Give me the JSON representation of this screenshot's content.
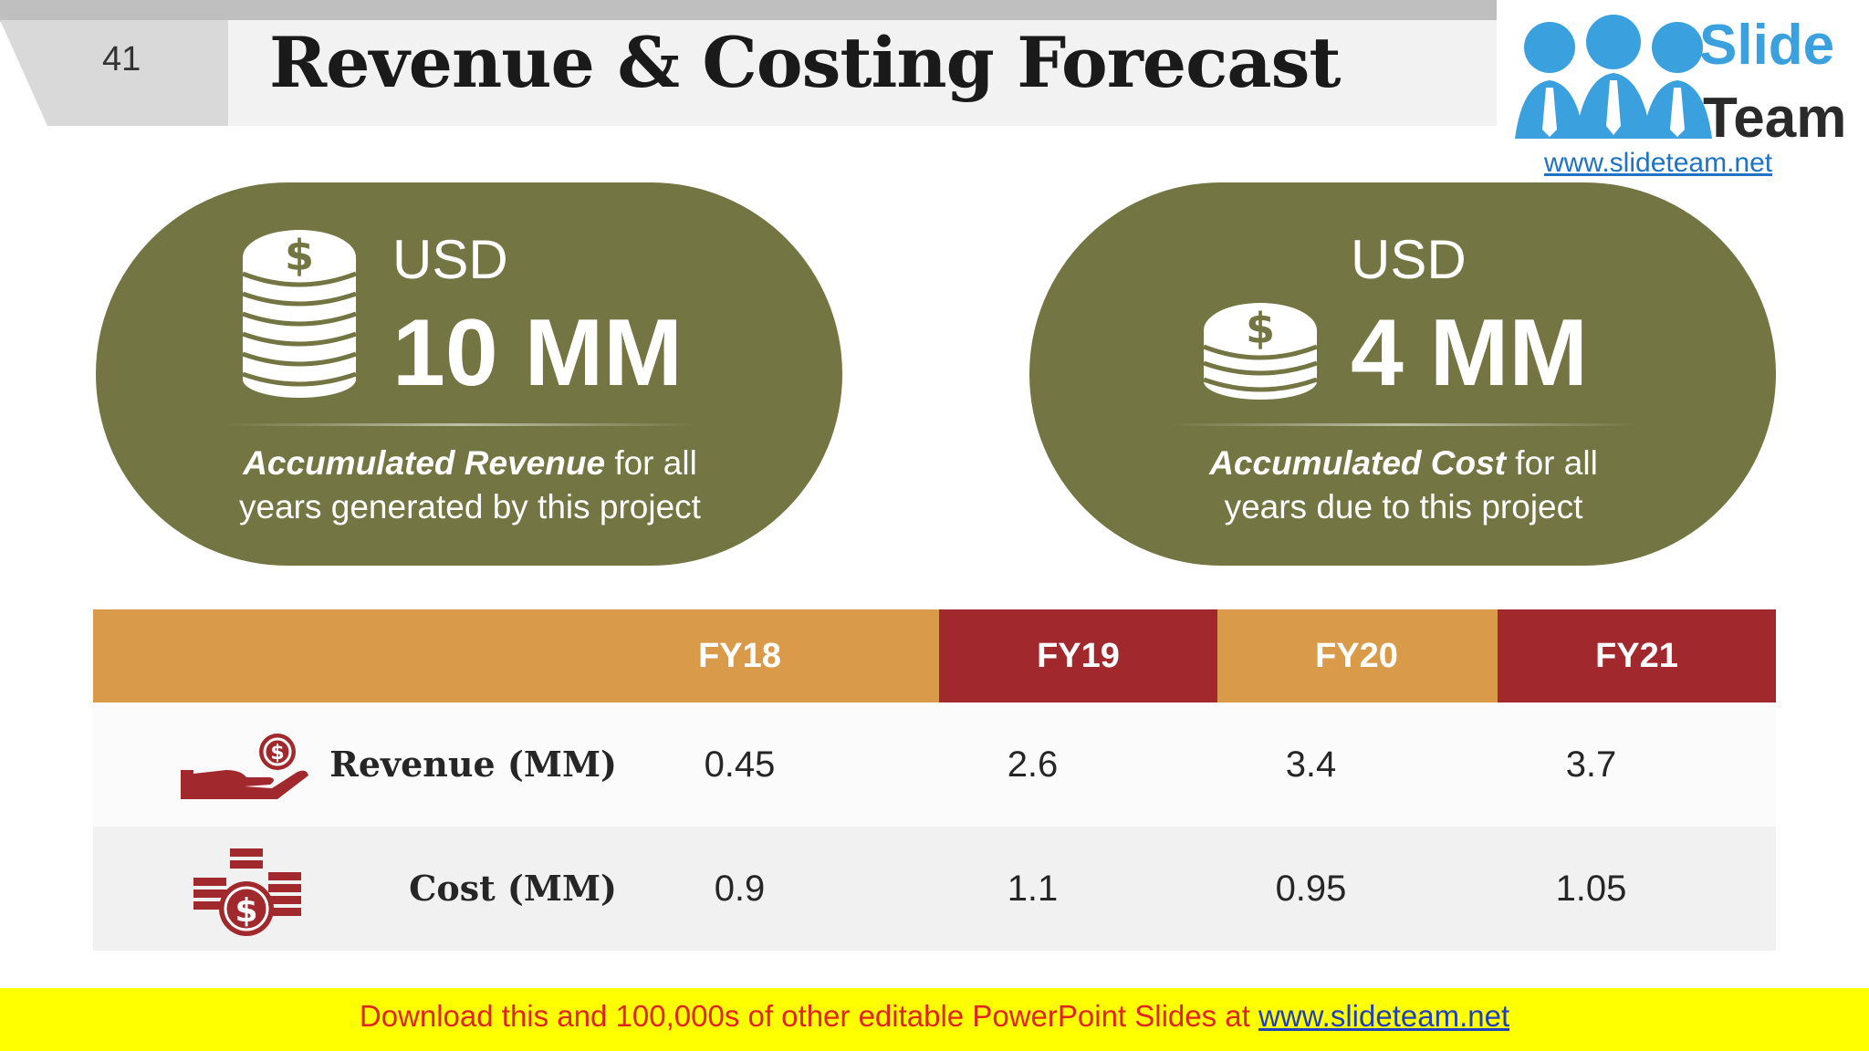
{
  "slide_number": "41",
  "title": "Revenue & Costing Forecast",
  "logo": {
    "line1": "Slide",
    "line2": "Team",
    "url": "www.slideteam.net"
  },
  "revenue_card": {
    "currency": "USD",
    "amount": "10 MM",
    "desc_bold": "Accumulated Revenue",
    "desc_rest_1": " for all",
    "desc_line2": "years generated by this project",
    "icon": "coin-stack-icon"
  },
  "cost_card": {
    "currency": "USD",
    "amount": "4 MM",
    "desc_bold": "Accumulated Cost",
    "desc_rest_1": " for all",
    "desc_line2": "years due to this project",
    "icon": "coin-stack-icon"
  },
  "table": {
    "headers": [
      "FY18",
      "FY19",
      "FY20",
      "FY21"
    ],
    "rows": [
      {
        "label": "Revenue (MM)",
        "icon": "hand-coin-icon",
        "values": [
          "0.45",
          "2.6",
          "3.4",
          "3.7"
        ]
      },
      {
        "label": "Cost (MM)",
        "icon": "money-stacks-icon",
        "values": [
          "0.9",
          "1.1",
          "0.95",
          "1.05"
        ]
      }
    ]
  },
  "footer": {
    "text": "Download this and 100,000s of other editable PowerPoint Slides at ",
    "link": "www.slideteam.net"
  },
  "colors": {
    "olive": "#737542",
    "orange": "#d99a4a",
    "red": "#a1292d",
    "footer_bg": "#ffff00",
    "footer_text": "#e0241b"
  }
}
